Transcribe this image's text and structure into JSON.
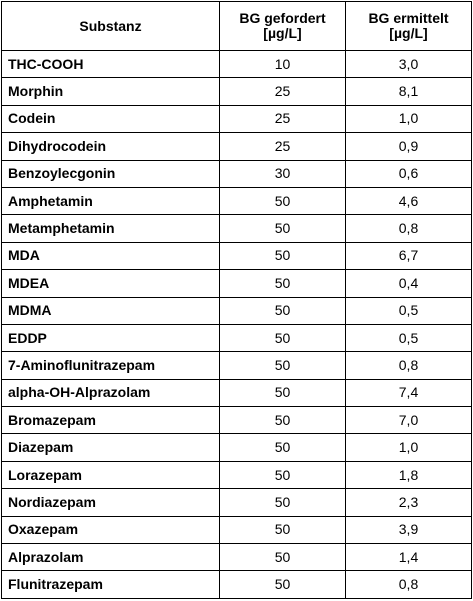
{
  "table": {
    "headers": {
      "substance": "Substanz",
      "required_line1": "BG gefordert",
      "required_line2": "[µg/L]",
      "determined_line1": "BG ermittelt",
      "determined_line2": "[µg/L]"
    },
    "rows": [
      {
        "name": "THC-COOH",
        "required": "10",
        "determined": "3,0"
      },
      {
        "name": "Morphin",
        "required": "25",
        "determined": "8,1"
      },
      {
        "name": "Codein",
        "required": "25",
        "determined": "1,0"
      },
      {
        "name": "Dihydrocodein",
        "required": "25",
        "determined": "0,9"
      },
      {
        "name": "Benzoylecgonin",
        "required": "30",
        "determined": "0,6"
      },
      {
        "name": "Amphetamin",
        "required": "50",
        "determined": "4,6"
      },
      {
        "name": "Metamphetamin",
        "required": "50",
        "determined": "0,8"
      },
      {
        "name": "MDA",
        "required": "50",
        "determined": "6,7"
      },
      {
        "name": "MDEA",
        "required": "50",
        "determined": "0,4"
      },
      {
        "name": "MDMA",
        "required": "50",
        "determined": "0,5"
      },
      {
        "name": "EDDP",
        "required": "50",
        "determined": "0,5"
      },
      {
        "name": "7-Aminoflunitrazepam",
        "required": "50",
        "determined": "0,8"
      },
      {
        "name": "alpha-OH-Alprazolam",
        "required": "50",
        "determined": "7,4"
      },
      {
        "name": "Bromazepam",
        "required": "50",
        "determined": "7,0"
      },
      {
        "name": "Diazepam",
        "required": "50",
        "determined": "1,0"
      },
      {
        "name": "Lorazepam",
        "required": "50",
        "determined": "1,8"
      },
      {
        "name": "Nordiazepam",
        "required": "50",
        "determined": "2,3"
      },
      {
        "name": "Oxazepam",
        "required": "50",
        "determined": "3,9"
      },
      {
        "name": "Alprazolam",
        "required": "50",
        "determined": "1,4"
      },
      {
        "name": "Flunitrazepam",
        "required": "50",
        "determined": "0,8"
      }
    ]
  }
}
